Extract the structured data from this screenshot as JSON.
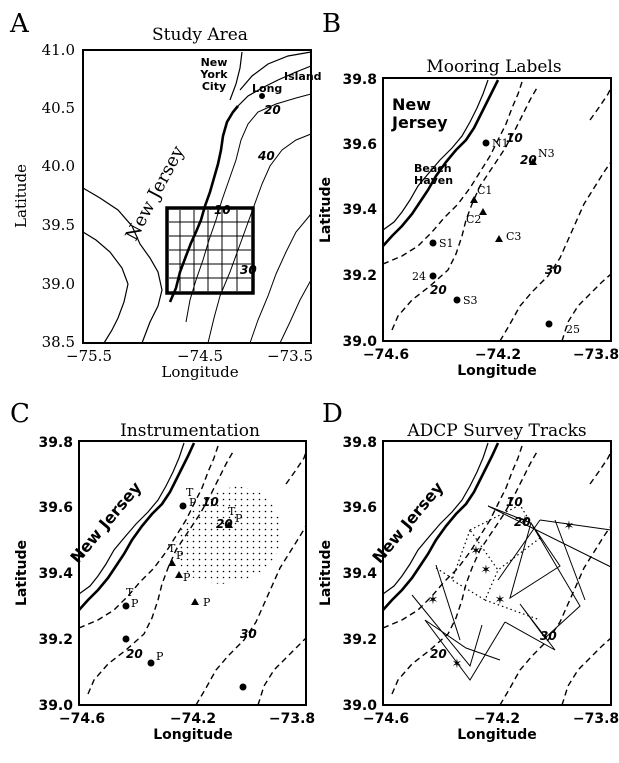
{
  "panels": {
    "a": {
      "letter": "A",
      "title": "Study Area",
      "xlabel": "Longitude",
      "ylabel": "Latitude",
      "x_ticks": [
        "−75.5",
        "−74.5",
        "−73.5"
      ],
      "y_ticks": [
        "41.0",
        "40.5",
        "40.0",
        "39.5",
        "39.0",
        "38.5"
      ],
      "places": {
        "nyc_1": "New",
        "nyc_2": "York",
        "nyc_3": "City",
        "long_island_1": "Long",
        "long_island_2": "Island",
        "new_jersey": "New Jersey"
      },
      "contour_labels": {
        "c20": "20",
        "c40": "40",
        "c10": "10",
        "c30": "30"
      }
    },
    "b": {
      "letter": "B",
      "title": "Mooring Labels",
      "xlabel": "Longitude",
      "ylabel": "Latitude",
      "x_ticks": [
        "−74.6",
        "−74.2",
        "−73.8"
      ],
      "y_ticks": [
        "39.8",
        "39.6",
        "39.4",
        "39.2",
        "39.0"
      ],
      "places": {
        "nj_1": "New",
        "nj_2": "Jersey",
        "bh_1": "Beach",
        "bh_2": "Haven"
      },
      "contour_labels": {
        "c10": "10",
        "c20a": "20",
        "c20b": "20",
        "c30": "30"
      },
      "moorings": {
        "n1": "N1",
        "n3": "N3",
        "c1": "C1",
        "c2": "C2",
        "c3": "C3",
        "s1": "S1",
        "m24": "24",
        "s3": "S3",
        "m25": "25"
      }
    },
    "c": {
      "letter": "C",
      "title": "Instrumentation",
      "xlabel": "Longitude",
      "ylabel": "Latitude",
      "x_ticks": [
        "−74.6",
        "−74.2",
        "−73.8"
      ],
      "y_ticks": [
        "39.8",
        "39.6",
        "39.4",
        "39.2",
        "39.0"
      ],
      "places": {
        "nj": "New Jersey"
      },
      "contour_labels": {
        "c10": "10",
        "c20a": "20",
        "c20b": "20",
        "c30": "30"
      },
      "instrument_labels": {
        "t": "T",
        "p": "P"
      }
    },
    "d": {
      "letter": "D",
      "title": "ADCP Survey Tracks",
      "xlabel": "Longitude",
      "ylabel": "Latitude",
      "x_ticks": [
        "−74.6",
        "−74.2",
        "−73.8"
      ],
      "y_ticks": [
        "39.8",
        "39.6",
        "39.4",
        "39.2",
        "39.0"
      ],
      "places": {
        "nj": "New Jersey"
      },
      "contour_labels": {
        "c10": "10",
        "c20a": "20",
        "c20b": "20",
        "c30": "30"
      }
    }
  }
}
